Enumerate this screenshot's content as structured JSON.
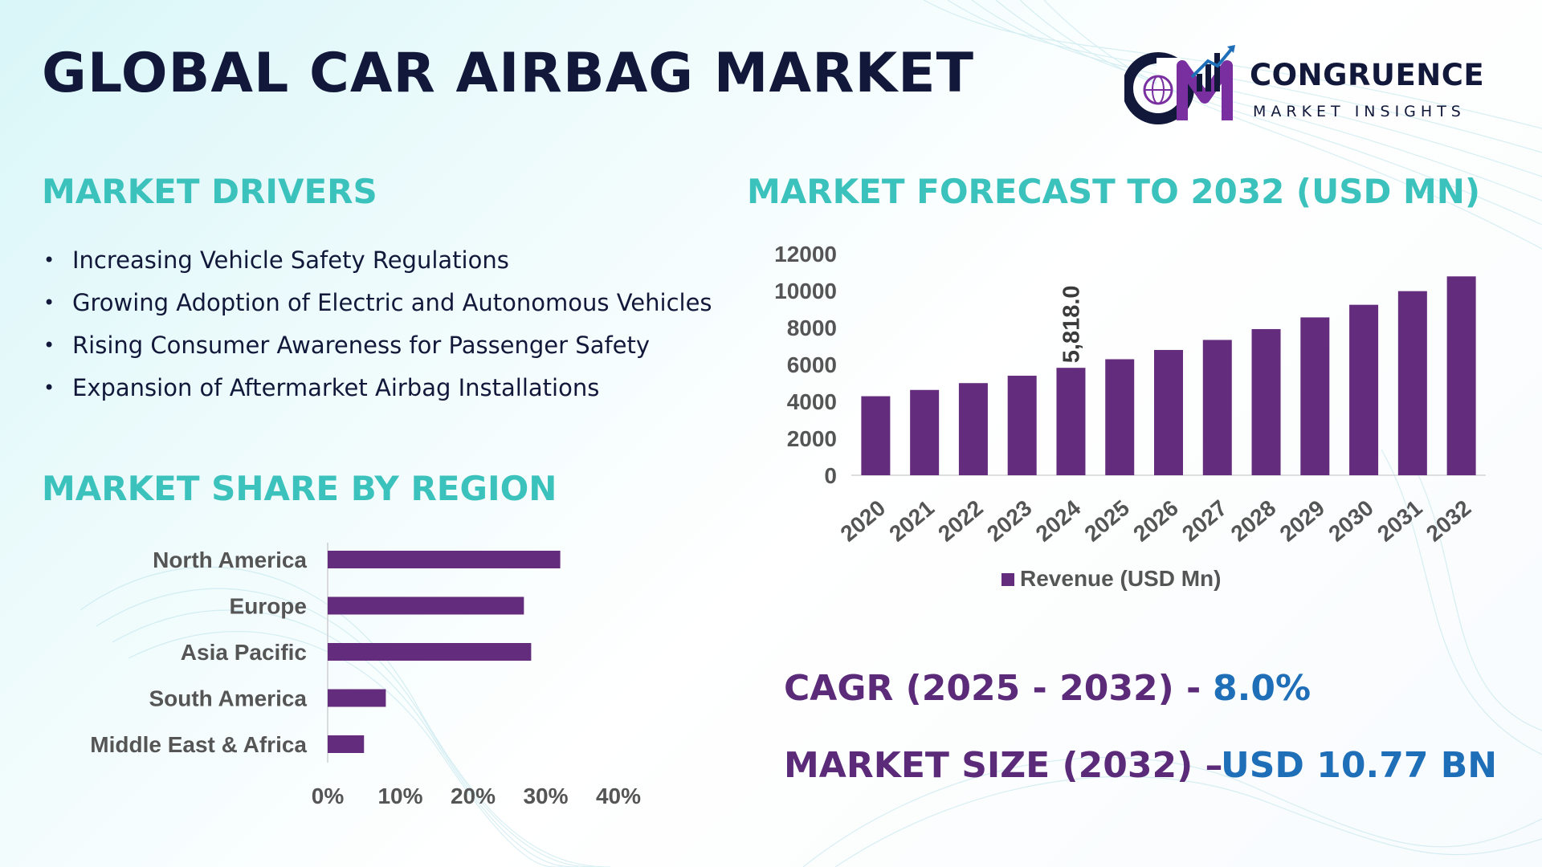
{
  "title": "GLOBAL CAR AIRBAG MARKET",
  "logo": {
    "name": "CONGRUENCE",
    "tagline": "MARKET INSIGHTS",
    "monogram": "CMI",
    "icon": "globe-bar-chart-icon",
    "colors": {
      "dark": "#12183a",
      "accent": "#7a2fa0"
    }
  },
  "drivers": {
    "title": "MARKET DRIVERS",
    "items": [
      "Increasing Vehicle Safety Regulations",
      "Growing Adoption of Electric and Autonomous Vehicles",
      "Rising Consumer Awareness for Passenger Safety",
      "Expansion of Aftermarket Airbag Installations"
    ]
  },
  "region": {
    "title": "MARKET SHARE BY REGION"
  },
  "forecast": {
    "title": "MARKET FORECAST TO 2032 (USD MN)"
  },
  "stats": {
    "cagr_label": "CAGR (2025 - 2032) -",
    "cagr_value": "8.0%",
    "size_label": "MARKET SIZE (2032) –",
    "size_value": "USD 10.77 BN"
  },
  "colors": {
    "bar": "#642c7d",
    "heading": "#3cc2bc",
    "title": "#12183a",
    "stat_label": "#5b2b7a",
    "stat_value": "#1f6fb8",
    "axis_text": "#555555"
  },
  "chart_data": [
    {
      "type": "bar",
      "title": "MARKET FORECAST TO 2032 (USD MN)",
      "categories": [
        "2020",
        "2021",
        "2022",
        "2023",
        "2024",
        "2025",
        "2026",
        "2027",
        "2028",
        "2029",
        "2030",
        "2031",
        "2032"
      ],
      "series": [
        {
          "name": "Revenue (USD Mn)",
          "values": [
            4280,
            4620,
            4990,
            5390,
            5818,
            6283,
            6786,
            7329,
            7915,
            8548,
            9232,
            9971,
            10770
          ]
        }
      ],
      "data_labels": [
        {
          "category": "2024",
          "text": "5,818.0"
        }
      ],
      "yticks": [
        "0",
        "2000",
        "4000",
        "6000",
        "8000",
        "10000",
        "12000"
      ],
      "ylim": [
        0,
        12000
      ],
      "xlabel": "",
      "ylabel": "",
      "legend": "bottom",
      "grid": false
    },
    {
      "type": "bar",
      "orientation": "horizontal",
      "title": "MARKET SHARE BY REGION",
      "categories": [
        "North America",
        "Europe",
        "Asia Pacific",
        "South America",
        "Middle East & Africa"
      ],
      "values": [
        32,
        27,
        28,
        8,
        5
      ],
      "xticks": [
        "0%",
        "10%",
        "20%",
        "30%",
        "40%"
      ],
      "xlim": [
        0,
        40
      ],
      "legend": "none",
      "grid": false
    }
  ]
}
